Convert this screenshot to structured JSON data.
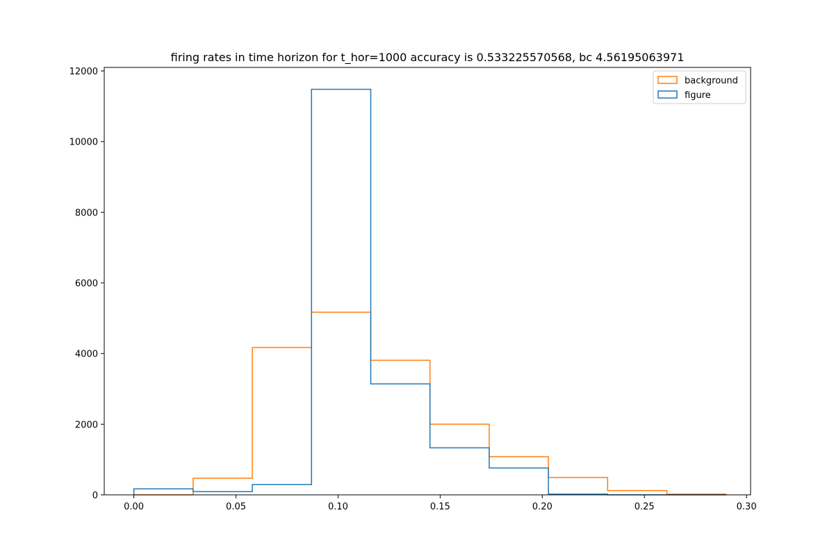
{
  "chart_data": {
    "type": "histogram",
    "title": "firing rates in time horizon for t_hor=1000 accuracy is 0.533225570568, bc 4.56195063971",
    "xlabel": "",
    "ylabel": "",
    "xlim": [
      -0.0145,
      0.302
    ],
    "ylim": [
      0,
      12100
    ],
    "x_ticks": [
      0.0,
      0.05,
      0.1,
      0.15,
      0.2,
      0.25,
      0.3
    ],
    "x_tick_labels": [
      "0.00",
      "0.05",
      "0.10",
      "0.15",
      "0.20",
      "0.25",
      "0.30"
    ],
    "y_ticks": [
      0,
      2000,
      4000,
      6000,
      8000,
      10000,
      12000
    ],
    "y_tick_labels": [
      "0",
      "2000",
      "4000",
      "6000",
      "8000",
      "10000",
      "12000"
    ],
    "bin_edges": [
      0.0,
      0.029,
      0.058,
      0.087,
      0.116,
      0.145,
      0.174,
      0.203,
      0.232,
      0.261,
      0.29
    ],
    "series": [
      {
        "name": "background",
        "color": "#ff7f0e",
        "values": [
          0,
          470,
          4170,
          5170,
          3810,
          2000,
          1080,
          490,
          120,
          20
        ]
      },
      {
        "name": "figure",
        "color": "#1f77b4",
        "values": [
          170,
          90,
          290,
          11480,
          3140,
          1330,
          760,
          20,
          0,
          0
        ]
      }
    ],
    "legend": {
      "position": "top-right",
      "entries": [
        "background",
        "figure"
      ]
    },
    "grid": false
  }
}
